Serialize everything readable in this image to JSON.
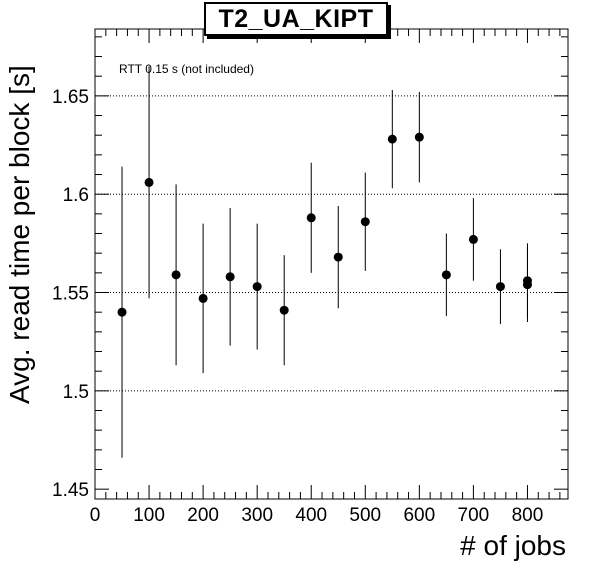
{
  "chart_data": {
    "type": "scatter",
    "title": "T2_UA_KIPT",
    "annotation": "RTT 0.15 s (not included)",
    "xlabel": "# of jobs",
    "ylabel": "Avg. read time per block [s]",
    "xlim": [
      0,
      875
    ],
    "ylim": [
      1.445,
      1.684
    ],
    "xticks": [
      0,
      100,
      200,
      300,
      400,
      500,
      600,
      700,
      800
    ],
    "yticks": [
      1.45,
      1.5,
      1.55,
      1.6,
      1.65
    ],
    "ytick_labels": [
      "1.45",
      "1.5",
      "1.55",
      "1.6",
      "1.65"
    ],
    "grid": "horizontal dotted",
    "marker_color": "#000000",
    "points": [
      {
        "x": 50,
        "y": 1.54,
        "err": 0.074
      },
      {
        "x": 100,
        "y": 1.606,
        "err": 0.059
      },
      {
        "x": 150,
        "y": 1.559,
        "err": 0.046
      },
      {
        "x": 200,
        "y": 1.547,
        "err": 0.038
      },
      {
        "x": 250,
        "y": 1.558,
        "err": 0.035
      },
      {
        "x": 300,
        "y": 1.553,
        "err": 0.032
      },
      {
        "x": 350,
        "y": 1.541,
        "err": 0.028
      },
      {
        "x": 400,
        "y": 1.588,
        "err": 0.028
      },
      {
        "x": 450,
        "y": 1.568,
        "err": 0.026
      },
      {
        "x": 500,
        "y": 1.586,
        "err": 0.025
      },
      {
        "x": 550,
        "y": 1.628,
        "err": 0.025
      },
      {
        "x": 600,
        "y": 1.629,
        "err": 0.023
      },
      {
        "x": 650,
        "y": 1.559,
        "err": 0.021
      },
      {
        "x": 700,
        "y": 1.577,
        "err": 0.021
      },
      {
        "x": 750,
        "y": 1.553,
        "err": 0.019
      },
      {
        "x": 800,
        "y": 1.556,
        "err": 0.019
      },
      {
        "x": 800,
        "y": 1.554,
        "err": 0.019
      }
    ]
  }
}
